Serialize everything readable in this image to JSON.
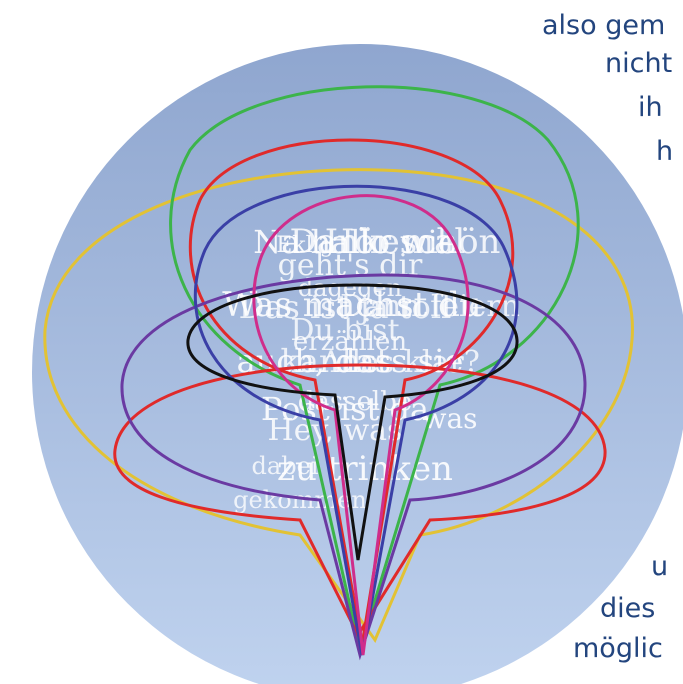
{
  "side_text_top": [
    "also gem",
    "nicht",
    "ih",
    "h"
  ],
  "side_text_bottom": [
    "u",
    "dies",
    "möglic"
  ],
  "bubble_words": [
    "Eklig",
    "Na hallo wie",
    "Dankeschön",
    "Hör mal",
    "geht's dir",
    "dagegen",
    "Was machst du",
    "Das ist ja toll",
    "Dann feiern",
    "Du bist",
    "erzählen",
    "auch, dass sie",
    "kannst",
    "Alles klar?",
    "dasselbe",
    "Post ist da",
    "was",
    "Hey, was",
    "zu trinken",
    "dabei",
    "gekommen"
  ],
  "colors": {
    "background_top": "#8fa6cf",
    "background_bottom": "#c0d3ef",
    "outline_black": "#111111",
    "outline_red": "#e02a2a",
    "outline_green": "#3cb44a",
    "outline_yellow": "#e2c234",
    "outline_purple": "#6a3aa2",
    "outline_magenta": "#cf2d8b",
    "outline_indigo": "#3a3fa6",
    "side_text": "#23457e",
    "bubble_text": "#ffffff"
  }
}
